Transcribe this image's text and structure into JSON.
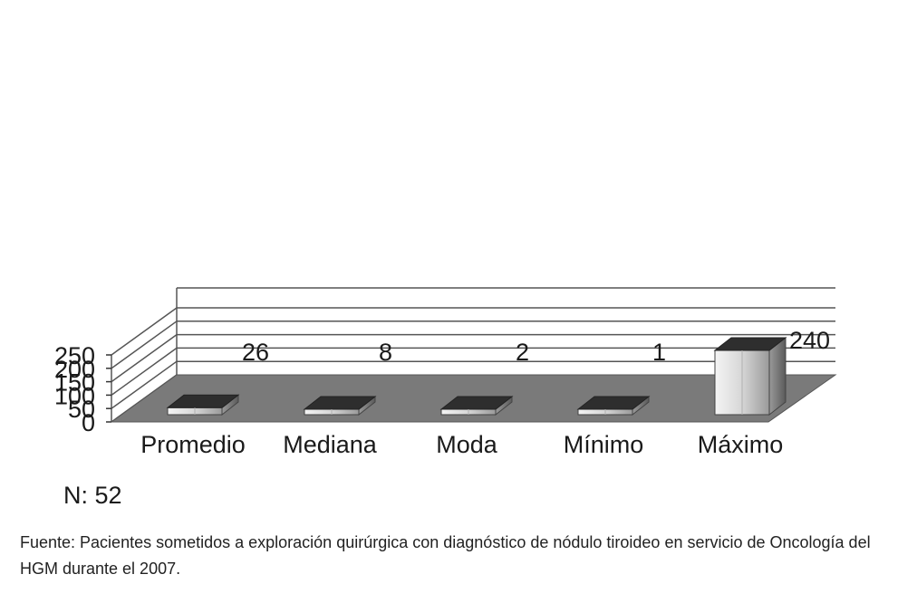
{
  "chart_data": {
    "type": "bar",
    "style": "3d",
    "categories": [
      "Promedio",
      "Mediana",
      "Moda",
      "Mínimo",
      "Máximo"
    ],
    "values": [
      26,
      8,
      2,
      1,
      240
    ],
    "data_labels": [
      "26",
      "8",
      "2",
      "1",
      "240"
    ],
    "y_ticks": [
      "0",
      "50",
      "100",
      "150",
      "200",
      "250"
    ],
    "ylim": [
      0,
      250
    ],
    "grid": true,
    "colors": {
      "bar_front": "#e6e6e6",
      "bar_side": "#8c8c8c",
      "bar_top": "#2e2e2e",
      "floor": "#7a7a7a",
      "grid": "#555555"
    }
  },
  "n_label": "N: 52",
  "source_note": "Fuente: Pacientes sometidos a exploración quirúrgica con diagnóstico de nódulo tiroideo en servicio de Oncología del HGM durante el 2007."
}
